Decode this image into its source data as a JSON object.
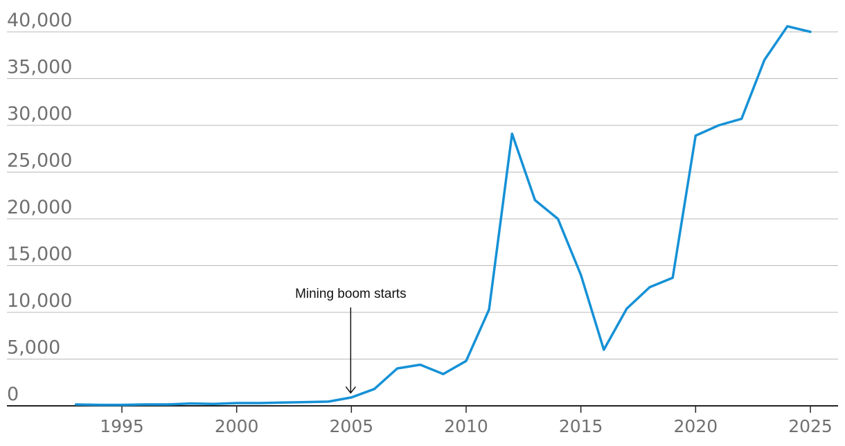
{
  "chart_data": {
    "type": "line",
    "title": "",
    "xlabel": "",
    "ylabel": "",
    "xlim": [
      1993,
      2025
    ],
    "ylim": [
      0,
      40000
    ],
    "grid": true,
    "y_ticks": [
      "0",
      "5,000",
      "10,000",
      "15,000",
      "20,000",
      "25,000",
      "30,000",
      "35,000",
      "40,000"
    ],
    "y_tick_values": [
      0,
      5000,
      10000,
      15000,
      20000,
      25000,
      30000,
      35000,
      40000
    ],
    "x_ticks": [
      "1995",
      "2000",
      "2005",
      "2010",
      "2015",
      "2020",
      "2025"
    ],
    "x_tick_values": [
      1995,
      2000,
      2005,
      2010,
      2015,
      2020,
      2025
    ],
    "series": [
      {
        "color": "#1591d6",
        "x": [
          1993,
          1994,
          1995,
          1996,
          1997,
          1998,
          1999,
          2000,
          2001,
          2002,
          2003,
          2004,
          2005,
          2006,
          2007,
          2008,
          2009,
          2010,
          2011,
          2012,
          2013,
          2014,
          2015,
          2016,
          2017,
          2018,
          2019,
          2020,
          2021,
          2022,
          2023,
          2024,
          2025
        ],
        "y": [
          150,
          100,
          100,
          150,
          150,
          250,
          200,
          300,
          300,
          350,
          400,
          450,
          900,
          1800,
          4000,
          4400,
          3400,
          4800,
          10300,
          29100,
          22000,
          20000,
          14000,
          6000,
          10400,
          12700,
          13700,
          28900,
          30000,
          30700,
          37000,
          40600,
          40000
        ]
      }
    ],
    "annotations": [
      {
        "text": "Mining boom starts",
        "x": 2005,
        "y": 1300
      }
    ],
    "colors": {
      "line": "#1591d6",
      "grid": "#b8b8b8",
      "axis": "#222222",
      "tick_text": "#707070"
    }
  }
}
